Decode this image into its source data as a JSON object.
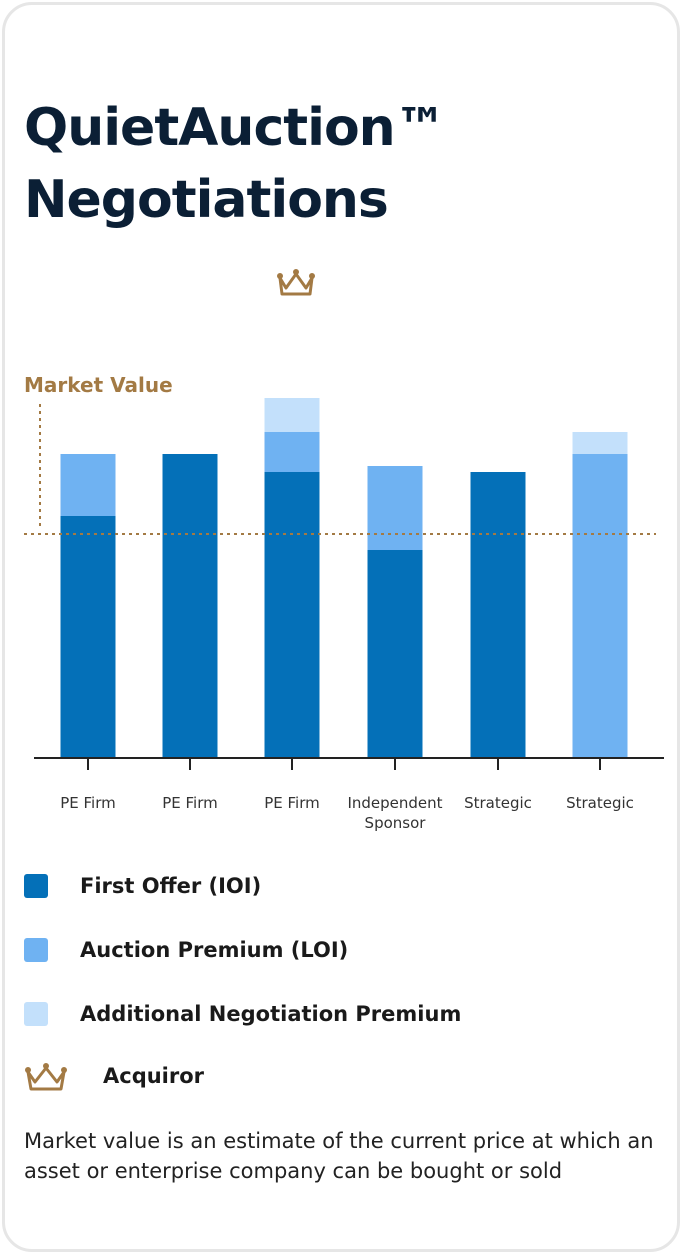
{
  "title": {
    "line1": "QuietAuction™",
    "line2": "Negotiations"
  },
  "colors": {
    "first_offer": "#0470b8",
    "auction_premium": "#6fb2f2",
    "negotiation_premium": "#c3e0fb",
    "market_value": "#a37a44",
    "title": "#0b1f35"
  },
  "icons": {
    "acquiror": "crown-icon"
  },
  "chart_data": {
    "type": "bar",
    "stacked": true,
    "categories": [
      "PE Firm",
      "PE Firm",
      "PE Firm",
      "Independent\nSponsor",
      "Strategic",
      "Strategic"
    ],
    "series": [
      {
        "name": "First Offer (IOI)",
        "values": [
          242,
          304,
          286,
          208,
          286,
          0
        ]
      },
      {
        "name": "Auction Premium (LOI)",
        "values": [
          62,
          0,
          40,
          84,
          0,
          304
        ]
      },
      {
        "name": "Additional Negotiation Premium",
        "values": [
          0,
          0,
          34,
          0,
          0,
          22
        ]
      }
    ],
    "reference_line": {
      "label": "Market Value",
      "value": 224
    },
    "acquiror_index": 2,
    "ylim": [
      0,
      370
    ],
    "grid": false,
    "legend": "bottom"
  },
  "legend": {
    "items": [
      {
        "label": "First Offer (IOI)",
        "swatch": "first_offer"
      },
      {
        "label": "Auction Premium (LOI)",
        "swatch": "auction_premium"
      },
      {
        "label": "Additional Negotiation Premium",
        "swatch": "negotiation_premium"
      }
    ],
    "acquiror_label": "Acquiror"
  },
  "footnote": "Market value is an estimate of the current price at which an asset or enterprise company can be bought or sold"
}
